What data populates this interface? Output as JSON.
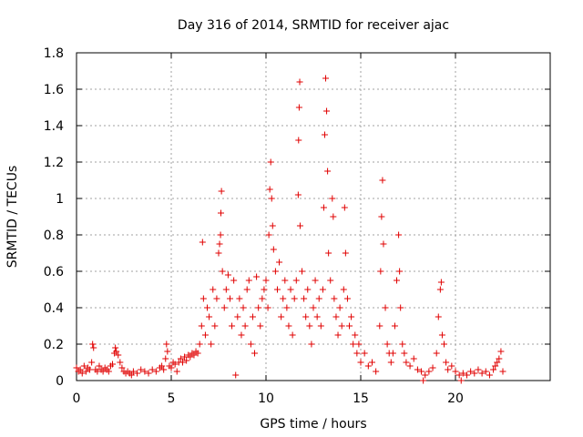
{
  "chart_data": {
    "type": "scatter",
    "title": "Day 316 of 2014, SRMTID for receiver ajac",
    "xlabel": "GPS time / hours",
    "ylabel": "SRMTID / TECUs",
    "xlim": [
      0,
      25
    ],
    "ylim": [
      0,
      1.8
    ],
    "xticks": [
      0,
      5,
      10,
      15,
      20
    ],
    "yticks": [
      0,
      0.2,
      0.4,
      0.6,
      0.8,
      1,
      1.2,
      1.4,
      1.6,
      1.8
    ],
    "xtick_labels": [
      "0",
      "5",
      "10",
      "15",
      "20"
    ],
    "ytick_labels": [
      "0",
      "0.2",
      "0.4",
      "0.6",
      "0.8",
      "1",
      "1.2",
      "1.4",
      "1.6",
      "1.8"
    ],
    "grid": true,
    "marker": "+",
    "series": [
      {
        "name": "SRMTID",
        "color": "#e00000",
        "points": [
          [
            0.0,
            0.07
          ],
          [
            0.1,
            0.05
          ],
          [
            0.2,
            0.06
          ],
          [
            0.3,
            0.04
          ],
          [
            0.4,
            0.08
          ],
          [
            0.5,
            0.05
          ],
          [
            0.6,
            0.07
          ],
          [
            0.7,
            0.06
          ],
          [
            0.8,
            0.1
          ],
          [
            0.85,
            0.2
          ],
          [
            0.9,
            0.18
          ],
          [
            1.0,
            0.06
          ],
          [
            1.1,
            0.05
          ],
          [
            1.2,
            0.08
          ],
          [
            1.3,
            0.06
          ],
          [
            1.4,
            0.05
          ],
          [
            1.5,
            0.07
          ],
          [
            1.6,
            0.06
          ],
          [
            1.7,
            0.05
          ],
          [
            1.8,
            0.08
          ],
          [
            1.9,
            0.09
          ],
          [
            2.0,
            0.15
          ],
          [
            2.05,
            0.18
          ],
          [
            2.1,
            0.16
          ],
          [
            2.2,
            0.14
          ],
          [
            2.3,
            0.1
          ],
          [
            2.4,
            0.07
          ],
          [
            2.5,
            0.05
          ],
          [
            2.6,
            0.04
          ],
          [
            2.7,
            0.05
          ],
          [
            2.8,
            0.04
          ],
          [
            2.9,
            0.03
          ],
          [
            3.0,
            0.05
          ],
          [
            3.2,
            0.04
          ],
          [
            3.4,
            0.06
          ],
          [
            3.6,
            0.05
          ],
          [
            3.8,
            0.04
          ],
          [
            4.0,
            0.06
          ],
          [
            4.2,
            0.05
          ],
          [
            4.4,
            0.07
          ],
          [
            4.5,
            0.08
          ],
          [
            4.6,
            0.06
          ],
          [
            4.7,
            0.12
          ],
          [
            4.75,
            0.2
          ],
          [
            4.8,
            0.16
          ],
          [
            4.9,
            0.08
          ],
          [
            5.0,
            0.07
          ],
          [
            5.1,
            0.1
          ],
          [
            5.2,
            0.09
          ],
          [
            5.3,
            0.05
          ],
          [
            5.4,
            0.1
          ],
          [
            5.5,
            0.12
          ],
          [
            5.6,
            0.1
          ],
          [
            5.7,
            0.13
          ],
          [
            5.8,
            0.11
          ],
          [
            5.9,
            0.14
          ],
          [
            6.0,
            0.13
          ],
          [
            6.1,
            0.15
          ],
          [
            6.2,
            0.14
          ],
          [
            6.3,
            0.16
          ],
          [
            6.4,
            0.15
          ],
          [
            6.5,
            0.2
          ],
          [
            6.6,
            0.3
          ],
          [
            6.65,
            0.76
          ],
          [
            6.7,
            0.45
          ],
          [
            6.8,
            0.25
          ],
          [
            6.9,
            0.4
          ],
          [
            7.0,
            0.35
          ],
          [
            7.1,
            0.2
          ],
          [
            7.2,
            0.5
          ],
          [
            7.3,
            0.3
          ],
          [
            7.4,
            0.45
          ],
          [
            7.5,
            0.7
          ],
          [
            7.55,
            0.75
          ],
          [
            7.6,
            0.8
          ],
          [
            7.62,
            0.92
          ],
          [
            7.65,
            1.04
          ],
          [
            7.7,
            0.6
          ],
          [
            7.8,
            0.4
          ],
          [
            7.9,
            0.5
          ],
          [
            8.0,
            0.58
          ],
          [
            8.1,
            0.45
          ],
          [
            8.2,
            0.3
          ],
          [
            8.3,
            0.55
          ],
          [
            8.4,
            0.03
          ],
          [
            8.5,
            0.35
          ],
          [
            8.6,
            0.45
          ],
          [
            8.7,
            0.25
          ],
          [
            8.8,
            0.4
          ],
          [
            8.9,
            0.3
          ],
          [
            9.0,
            0.5
          ],
          [
            9.1,
            0.55
          ],
          [
            9.2,
            0.2
          ],
          [
            9.3,
            0.35
          ],
          [
            9.4,
            0.15
          ],
          [
            9.5,
            0.57
          ],
          [
            9.6,
            0.4
          ],
          [
            9.7,
            0.3
          ],
          [
            9.8,
            0.45
          ],
          [
            9.9,
            0.5
          ],
          [
            10.0,
            0.55
          ],
          [
            10.1,
            0.4
          ],
          [
            10.15,
            0.8
          ],
          [
            10.2,
            1.05
          ],
          [
            10.25,
            1.2
          ],
          [
            10.3,
            1.0
          ],
          [
            10.35,
            0.85
          ],
          [
            10.4,
            0.72
          ],
          [
            10.5,
            0.6
          ],
          [
            10.6,
            0.5
          ],
          [
            10.7,
            0.65
          ],
          [
            10.8,
            0.35
          ],
          [
            10.9,
            0.45
          ],
          [
            11.0,
            0.55
          ],
          [
            11.1,
            0.4
          ],
          [
            11.2,
            0.3
          ],
          [
            11.3,
            0.5
          ],
          [
            11.4,
            0.25
          ],
          [
            11.5,
            0.45
          ],
          [
            11.6,
            0.55
          ],
          [
            11.7,
            1.02
          ],
          [
            11.72,
            1.32
          ],
          [
            11.75,
            1.5
          ],
          [
            11.78,
            1.64
          ],
          [
            11.8,
            0.85
          ],
          [
            11.9,
            0.6
          ],
          [
            12.0,
            0.45
          ],
          [
            12.1,
            0.35
          ],
          [
            12.2,
            0.5
          ],
          [
            12.3,
            0.3
          ],
          [
            12.4,
            0.2
          ],
          [
            12.5,
            0.4
          ],
          [
            12.6,
            0.55
          ],
          [
            12.7,
            0.35
          ],
          [
            12.8,
            0.45
          ],
          [
            12.9,
            0.3
          ],
          [
            13.0,
            0.5
          ],
          [
            13.05,
            0.95
          ],
          [
            13.1,
            1.35
          ],
          [
            13.15,
            1.66
          ],
          [
            13.2,
            1.48
          ],
          [
            13.25,
            1.15
          ],
          [
            13.3,
            0.7
          ],
          [
            13.4,
            0.55
          ],
          [
            13.5,
            1.0
          ],
          [
            13.55,
            0.9
          ],
          [
            13.6,
            0.45
          ],
          [
            13.7,
            0.35
          ],
          [
            13.8,
            0.25
          ],
          [
            13.9,
            0.4
          ],
          [
            14.0,
            0.3
          ],
          [
            14.1,
            0.5
          ],
          [
            14.15,
            0.95
          ],
          [
            14.2,
            0.7
          ],
          [
            14.3,
            0.45
          ],
          [
            14.4,
            0.3
          ],
          [
            14.5,
            0.35
          ],
          [
            14.6,
            0.2
          ],
          [
            14.7,
            0.25
          ],
          [
            14.8,
            0.15
          ],
          [
            14.9,
            0.2
          ],
          [
            15.0,
            0.1
          ],
          [
            15.2,
            0.15
          ],
          [
            15.4,
            0.08
          ],
          [
            15.6,
            0.1
          ],
          [
            15.8,
            0.05
          ],
          [
            16.0,
            0.3
          ],
          [
            16.05,
            0.6
          ],
          [
            16.1,
            0.9
          ],
          [
            16.15,
            1.1
          ],
          [
            16.2,
            0.75
          ],
          [
            16.3,
            0.4
          ],
          [
            16.4,
            0.2
          ],
          [
            16.5,
            0.15
          ],
          [
            16.6,
            0.1
          ],
          [
            16.7,
            0.15
          ],
          [
            16.8,
            0.3
          ],
          [
            16.9,
            0.55
          ],
          [
            17.0,
            0.8
          ],
          [
            17.05,
            0.6
          ],
          [
            17.1,
            0.4
          ],
          [
            17.2,
            0.2
          ],
          [
            17.3,
            0.15
          ],
          [
            17.4,
            0.1
          ],
          [
            17.6,
            0.08
          ],
          [
            17.8,
            0.12
          ],
          [
            18.0,
            0.06
          ],
          [
            18.2,
            0.05
          ],
          [
            18.3,
            0.0
          ],
          [
            18.4,
            0.03
          ],
          [
            18.6,
            0.05
          ],
          [
            18.8,
            0.07
          ],
          [
            19.0,
            0.15
          ],
          [
            19.1,
            0.35
          ],
          [
            19.2,
            0.5
          ],
          [
            19.25,
            0.54
          ],
          [
            19.3,
            0.25
          ],
          [
            19.4,
            0.2
          ],
          [
            19.5,
            0.1
          ],
          [
            19.6,
            0.06
          ],
          [
            19.8,
            0.08
          ],
          [
            20.0,
            0.05
          ],
          [
            20.2,
            0.03
          ],
          [
            20.3,
            0.0
          ],
          [
            20.4,
            0.04
          ],
          [
            20.6,
            0.03
          ],
          [
            20.8,
            0.05
          ],
          [
            21.0,
            0.04
          ],
          [
            21.2,
            0.06
          ],
          [
            21.4,
            0.04
          ],
          [
            21.6,
            0.05
          ],
          [
            21.8,
            0.03
          ],
          [
            22.0,
            0.06
          ],
          [
            22.1,
            0.08
          ],
          [
            22.2,
            0.1
          ],
          [
            22.3,
            0.12
          ],
          [
            22.4,
            0.16
          ],
          [
            22.5,
            0.05
          ]
        ]
      }
    ]
  }
}
